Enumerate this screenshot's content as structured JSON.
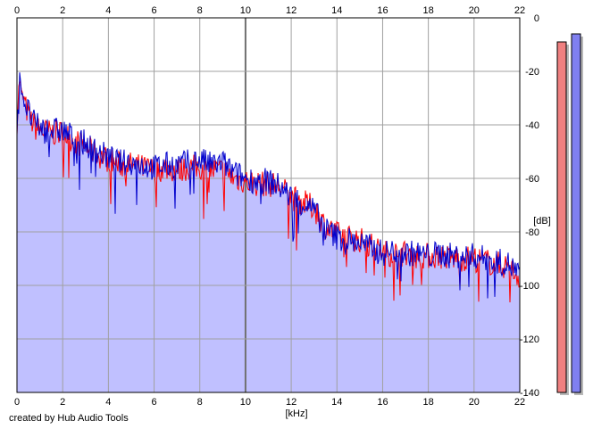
{
  "credit": "created by Hub Audio Tools",
  "chart_data": {
    "type": "line",
    "title": "",
    "xlabel": "[kHz]",
    "ylabel": "[dB]",
    "xlim": [
      0,
      22
    ],
    "ylim": [
      -140,
      0
    ],
    "x_ticks": [
      0,
      2,
      4,
      6,
      8,
      10,
      12,
      14,
      16,
      18,
      20,
      22
    ],
    "y_ticks": [
      0,
      -20,
      -40,
      -60,
      -80,
      -100,
      -120,
      -140
    ],
    "y_tick_labels": [
      "0",
      "-20",
      "-40",
      "-60",
      "-80",
      "-100",
      "-120",
      "-140"
    ],
    "grid": true,
    "x_axis_top": true,
    "fill_color": "#c0c0ff",
    "series": [
      {
        "color": "#ff0000",
        "x": [
          0,
          0.1,
          0.2,
          0.4,
          0.6,
          0.8,
          1.0,
          1.5,
          2.0,
          2.5,
          3.0,
          3.5,
          4.0,
          4.5,
          5.0,
          5.5,
          6.0,
          6.5,
          7.0,
          7.5,
          8.0,
          8.5,
          9.0,
          9.5,
          10.0,
          10.5,
          11.0,
          11.5,
          12.0,
          12.5,
          13.0,
          13.5,
          14.0,
          14.5,
          15.0,
          15.5,
          16.0,
          16.5,
          17.0,
          17.5,
          18.0,
          18.5,
          19.0,
          19.5,
          20.0,
          20.5,
          21.0,
          21.5,
          22.0
        ],
        "y": [
          -42,
          -22,
          -28,
          -34,
          -38,
          -41,
          -42,
          -43,
          -43,
          -46,
          -48,
          -51,
          -53,
          -55,
          -55,
          -56,
          -57,
          -56,
          -57,
          -56,
          -56,
          -57,
          -57,
          -60,
          -61,
          -62,
          -62,
          -63,
          -67,
          -69,
          -71,
          -78,
          -81,
          -82,
          -83,
          -85,
          -88,
          -88,
          -88,
          -89,
          -89,
          -89,
          -90,
          -90,
          -90,
          -91,
          -92,
          -93,
          -97
        ]
      },
      {
        "color": "#0000cc",
        "x": [
          0,
          0.1,
          0.2,
          0.4,
          0.6,
          0.8,
          1.0,
          1.5,
          2.0,
          2.5,
          3.0,
          3.5,
          4.0,
          4.5,
          5.0,
          5.5,
          6.0,
          6.5,
          7.0,
          7.5,
          8.0,
          8.5,
          9.0,
          9.5,
          10.0,
          10.5,
          11.0,
          11.5,
          12.0,
          12.5,
          13.0,
          13.5,
          14.0,
          14.5,
          15.0,
          15.5,
          16.0,
          16.5,
          17.0,
          17.5,
          18.0,
          18.5,
          19.0,
          19.5,
          20.0,
          20.5,
          21.0,
          21.5,
          22.0
        ],
        "y": [
          -43,
          -21,
          -27,
          -33,
          -37,
          -40,
          -41,
          -42,
          -42,
          -45,
          -47,
          -50,
          -52,
          -54,
          -54,
          -55,
          -56,
          -55,
          -55,
          -54,
          -53,
          -55,
          -54,
          -58,
          -60,
          -61,
          -61,
          -63,
          -67,
          -69,
          -72,
          -79,
          -82,
          -83,
          -84,
          -86,
          -88,
          -87,
          -88,
          -88,
          -89,
          -88,
          -89,
          -89,
          -89,
          -90,
          -91,
          -92,
          -96
        ]
      }
    ],
    "meters": [
      {
        "color": "#f08080",
        "value_db": -9
      },
      {
        "color": "#8080f0",
        "value_db": -6
      }
    ]
  }
}
